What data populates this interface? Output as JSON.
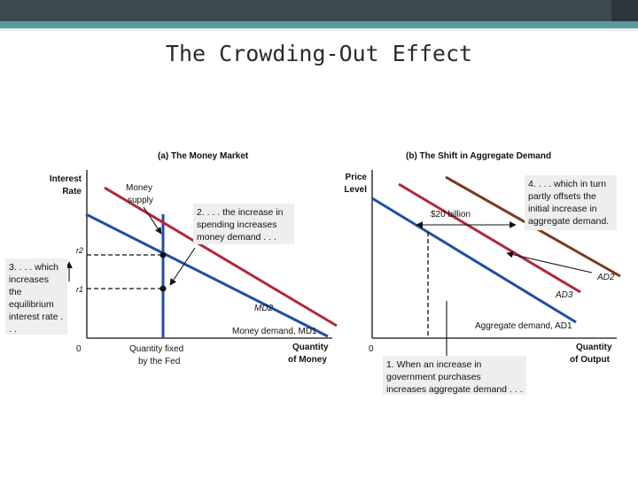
{
  "slide": {
    "title": "The Crowding-Out Effect"
  },
  "panel_a": {
    "heading": "(a) The Money Market",
    "y_axis_label_1": "Interest",
    "y_axis_label_2": "Rate",
    "x_axis_label_1": "Quantity",
    "x_axis_label_2": "of Money",
    "origin": "0",
    "supply_label_1": "Money",
    "supply_label_2": "supply",
    "quantity_fixed_1": "Quantity fixed",
    "quantity_fixed_2": "by the Fed",
    "rate_r2": "r2",
    "rate_r1": "r1",
    "md2_label": "MD2",
    "md1_label": "Money demand,  MD1",
    "note_2": "2. . . . the increase in spending increases money demand . . .",
    "note_3": "3. . . . which increases the equilibrium interest rate . . ."
  },
  "panel_b": {
    "heading": "(b) The Shift in Aggregate Demand",
    "y_axis_label_1": "Price",
    "y_axis_label_2": "Level",
    "x_axis_label_1": "Quantity",
    "x_axis_label_2": "of Output",
    "origin": "0",
    "shift_amount": "$20 billion",
    "ad2_label": "AD2",
    "ad3_label": "AD3",
    "ad1_label": "Aggregate demand, AD1",
    "note_1": "1. When an increase in government purchases increases aggregate demand . . .",
    "note_4": "4. . . . which in turn partly offsets the initial increase in aggregate demand."
  },
  "colors": {
    "money_supply": "#1f4fa3",
    "md1": "#1f4fa3",
    "md2": "#b2273a",
    "ad1": "#1f4fa3",
    "ad2": "#7a3a1e",
    "ad3": "#b2273a",
    "axis": "#111111",
    "note_box": "#eeeeee"
  }
}
